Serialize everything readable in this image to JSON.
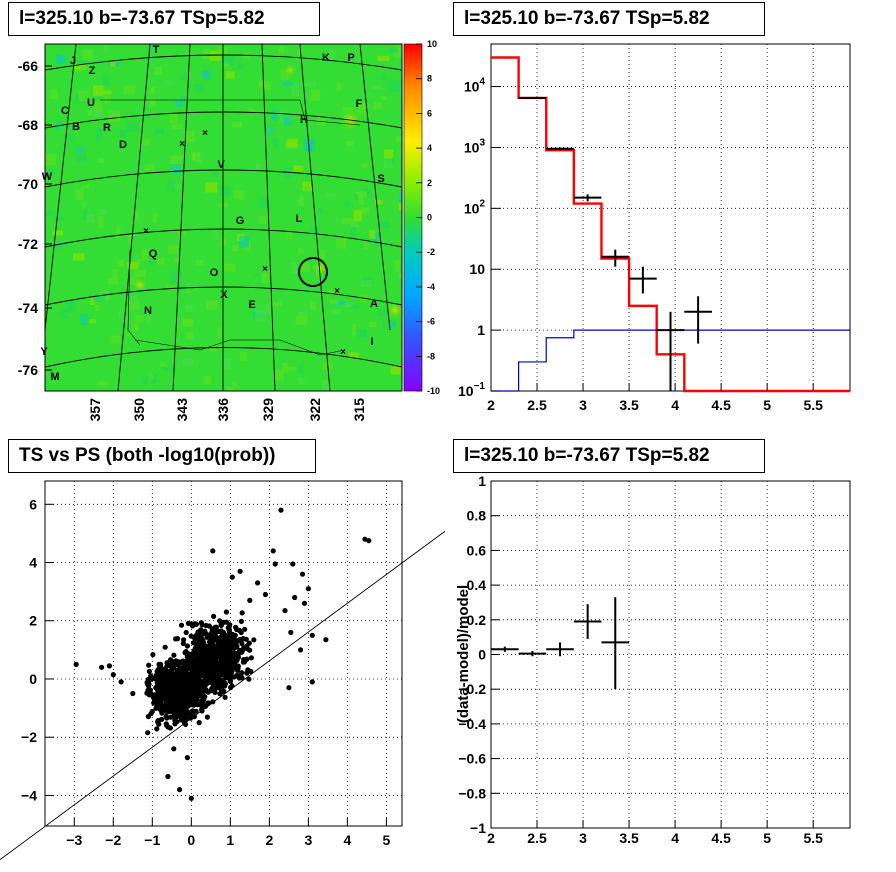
{
  "pads": {
    "top_left": {
      "title": "l=325.10 b=-73.67 TSp=5.82"
    },
    "top_right": {
      "title": "l=325.10 b=-73.67 TSp=5.82"
    },
    "bottom_left": {
      "title": "TS vs PS (both -log10(prob))"
    },
    "bottom_right": {
      "title": "l=325.10 b=-73.67 TSp=5.82"
    }
  },
  "chart_data": [
    {
      "type": "heatmap",
      "colorbar": {
        "min": -10,
        "max": 10,
        "ticks": [
          10,
          8,
          6,
          4,
          2,
          0,
          -2,
          -4,
          -6,
          -8,
          -10
        ]
      },
      "y_ticks": [
        "-66",
        "-68",
        "-70",
        "-72",
        "-74",
        "-76"
      ],
      "x_ticks": [
        "357",
        "350",
        "343",
        "336",
        "329",
        "322",
        "315"
      ],
      "labels": [
        "T",
        "J",
        "Z",
        "K",
        "P",
        "U",
        "F",
        "C",
        "B",
        "R",
        "H",
        "D",
        "V",
        "W",
        "S",
        "G",
        "L",
        "Q",
        "O",
        "N",
        "X",
        "E",
        "A",
        "Y",
        "I",
        "M"
      ]
    },
    {
      "type": "line",
      "log_y": true,
      "xlim": [
        2,
        5.9
      ],
      "ylim": [
        0.1,
        50000
      ],
      "x_ticks": [
        "2",
        "2.5",
        "3",
        "3.5",
        "4",
        "4.5",
        "5",
        "5.5"
      ],
      "y_ticks": [
        {
          "value": 10000,
          "base": "10",
          "exp": "4"
        },
        {
          "value": 1000,
          "base": "10",
          "exp": "3"
        },
        {
          "value": 100,
          "base": "10",
          "exp": "2"
        },
        {
          "value": 10,
          "base": "10",
          "exp": ""
        },
        {
          "value": 1,
          "base": "1",
          "exp": ""
        },
        {
          "value": 0.1,
          "base": "10",
          "exp": "−1"
        }
      ],
      "bin_edges": [
        2,
        2.3,
        2.6,
        2.9,
        3.2,
        3.5,
        3.8,
        4.1,
        4.4,
        4.7,
        5.0,
        5.3,
        5.6,
        5.9
      ],
      "series": [
        {
          "color": "#ff0000",
          "values": [
            30000,
            6500,
            900,
            120,
            15,
            2.5,
            0.4,
            0.1,
            0.1,
            0.1,
            0.1,
            0.1,
            0.1
          ]
        },
        {
          "color": "#0000cc",
          "values": [
            0.05,
            0.3,
            0.75,
            1.0,
            1.0,
            1.0,
            1.0,
            1.0,
            1.0,
            1.0,
            1.0,
            1.0,
            1.0
          ]
        }
      ],
      "data_points": [
        {
          "x": 2.45,
          "xerr": 0.15,
          "y": 6500,
          "ylo": 6300,
          "yhi": 6700
        },
        {
          "x": 2.75,
          "xerr": 0.15,
          "y": 950,
          "ylo": 900,
          "yhi": 1000
        },
        {
          "x": 3.05,
          "xerr": 0.15,
          "y": 150,
          "ylo": 130,
          "yhi": 170
        },
        {
          "x": 3.35,
          "xerr": 0.15,
          "y": 16,
          "ylo": 11,
          "yhi": 21
        },
        {
          "x": 3.65,
          "xerr": 0.15,
          "y": 7,
          "ylo": 4,
          "yhi": 11
        },
        {
          "x": 3.95,
          "xerr": 0.15,
          "y": 1,
          "ylo": 0.05,
          "yhi": 2
        },
        {
          "x": 4.25,
          "xerr": 0.15,
          "y": 2,
          "ylo": 0.6,
          "yhi": 3.6
        }
      ]
    },
    {
      "type": "scatter",
      "xlim": [
        -3.75,
        5.4
      ],
      "ylim": [
        -5.05,
        6.8
      ],
      "x_ticks": [
        "−3",
        "−2",
        "−1",
        "0",
        "1",
        "2",
        "3",
        "4",
        "5"
      ],
      "y_ticks": [
        "−4",
        "−2",
        "0",
        "2",
        "4",
        "6"
      ],
      "outliers": [
        [
          -2.95,
          0.5
        ],
        [
          -2.3,
          0.4
        ],
        [
          -2.1,
          0.45
        ],
        [
          -2.0,
          0.15
        ],
        [
          -1.8,
          -0.1
        ],
        [
          -1.5,
          -0.5
        ],
        [
          -0.6,
          -3.35
        ],
        [
          -0.3,
          -3.8
        ],
        [
          0.0,
          -4.1
        ],
        [
          -0.1,
          -2.7
        ],
        [
          -0.45,
          -2.4
        ],
        [
          0.55,
          4.4
        ],
        [
          1.05,
          3.5
        ],
        [
          1.25,
          3.7
        ],
        [
          2.1,
          4.4
        ],
        [
          2.3,
          5.8
        ],
        [
          2.6,
          3.95
        ],
        [
          2.85,
          3.6
        ],
        [
          3.0,
          3.1
        ],
        [
          2.65,
          2.8
        ],
        [
          2.15,
          3.95
        ],
        [
          3.45,
          1.35
        ],
        [
          4.45,
          4.8
        ],
        [
          4.55,
          4.75
        ],
        [
          3.1,
          1.5
        ],
        [
          2.9,
          2.6
        ],
        [
          2.4,
          2.35
        ],
        [
          1.7,
          3.3
        ],
        [
          1.9,
          2.9
        ],
        [
          0.9,
          2.3
        ],
        [
          1.5,
          2.7
        ],
        [
          2.55,
          1.6
        ],
        [
          2.8,
          1.0
        ],
        [
          3.1,
          -0.1
        ],
        [
          2.5,
          -0.3
        ]
      ],
      "line": [
        [
          -3.75,
          -4.9
        ],
        [
          5.4,
          4.8
        ]
      ]
    },
    {
      "type": "scatter",
      "xlim": [
        2,
        5.9
      ],
      "ylim": [
        -1,
        1
      ],
      "ylabel": "(data-model)/model",
      "x_ticks": [
        "2",
        "2.5",
        "3",
        "3.5",
        "4",
        "4.5",
        "5",
        "5.5"
      ],
      "y_ticks": [
        "1",
        "0.8",
        "0.6",
        "0.4",
        "0.2",
        "0",
        "−0.2",
        "−0.4",
        "−0.6",
        "−0.8",
        "−1"
      ],
      "data_points": [
        {
          "x": 2.15,
          "xerr": 0.15,
          "y": 0.03,
          "ylo": 0.015,
          "yhi": 0.045
        },
        {
          "x": 2.45,
          "xerr": 0.15,
          "y": 0.005,
          "ylo": -0.01,
          "yhi": 0.02
        },
        {
          "x": 2.75,
          "xerr": 0.15,
          "y": 0.03,
          "ylo": -0.01,
          "yhi": 0.07
        },
        {
          "x": 3.05,
          "xerr": 0.15,
          "y": 0.19,
          "ylo": 0.09,
          "yhi": 0.29
        },
        {
          "x": 3.35,
          "xerr": 0.15,
          "y": 0.07,
          "ylo": -0.2,
          "yhi": 0.33
        }
      ]
    }
  ]
}
